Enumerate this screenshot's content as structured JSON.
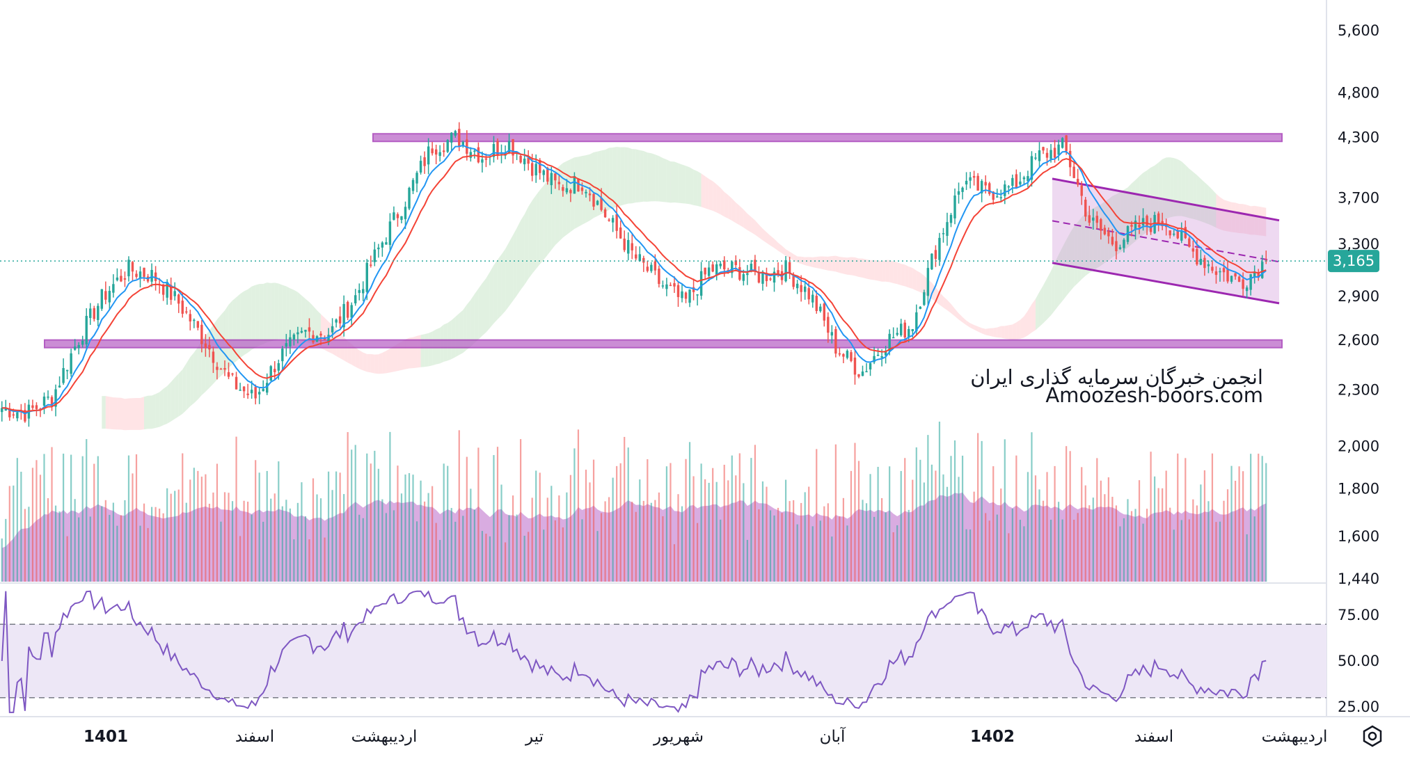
{
  "chart_data": {
    "type": "candlestick",
    "price_axis": {
      "ticks": [
        "5,600",
        "4,800",
        "4,300",
        "3,700",
        "3,300",
        "2,900",
        "2,600",
        "2,300",
        "2,000",
        "1,800",
        "1,600",
        "1,440"
      ],
      "tick_values": [
        5600,
        4800,
        4300,
        3700,
        3300,
        2900,
        2600,
        2300,
        2000,
        1800,
        1600,
        1440
      ],
      "scale": "log",
      "range": [
        1440,
        5800
      ],
      "current_price": 3165,
      "current_price_label": "3,165"
    },
    "rsi_axis": {
      "ticks": [
        "75.00",
        "50.00",
        "25.00"
      ],
      "tick_values": [
        75,
        50,
        25
      ],
      "range": [
        20,
        90
      ],
      "bands": [
        30,
        70
      ]
    },
    "time_axis": [
      {
        "label": "1401",
        "bold": true
      },
      {
        "label": "اسفند",
        "bold": false
      },
      {
        "label": "اردیبهشت",
        "bold": false
      },
      {
        "label": "تیر",
        "bold": false
      },
      {
        "label": "شهریور",
        "bold": false
      },
      {
        "label": "آبان",
        "bold": false
      },
      {
        "label": "1402",
        "bold": true
      },
      {
        "label": "اسفند",
        "bold": false
      },
      {
        "label": "اردیبهشت",
        "bold": false
      }
    ],
    "price_path": [
      2200,
      2170,
      2260,
      2600,
      2900,
      3100,
      3050,
      2850,
      2600,
      2350,
      2250,
      2500,
      2650,
      2650,
      2900,
      3300,
      3700,
      4200,
      4300,
      4100,
      4250,
      4000,
      3800,
      3850,
      3500,
      3200,
      3000,
      2850,
      3100,
      3100,
      3050,
      3100,
      2900,
      2550,
      2400,
      2600,
      2700,
      3300,
      3850,
      3750,
      3800,
      4100,
      4200,
      3500,
      3300,
      3450,
      3500,
      3250,
      3100,
      3000,
      3165
    ],
    "horizontal_levels": [
      4300,
      2580
    ],
    "channel": {
      "top": [
        3880,
        3500
      ],
      "bottom": [
        3150,
        2850
      ]
    },
    "colors": {
      "up": "#26a69a",
      "down": "#ef5350",
      "volume_area": "#ba68c8",
      "level_band": "#ba68c8",
      "channel_fill": "#ce93d8",
      "ema_fast": "#2196f3",
      "ema_slow": "#f44336",
      "rsi_line": "#7e57c2",
      "rsi_band": "#ede7f6",
      "ichimoku_bull": "#c8e6c9",
      "ichimoku_bear": "#ffcdd2"
    }
  },
  "watermark": {
    "line1": "انجمن خبرگان سرمایه گذاری ایران",
    "line2": "Amoozesh-boors.com"
  },
  "toolbar": {
    "settings_icon": "settings-hexagon-icon"
  }
}
